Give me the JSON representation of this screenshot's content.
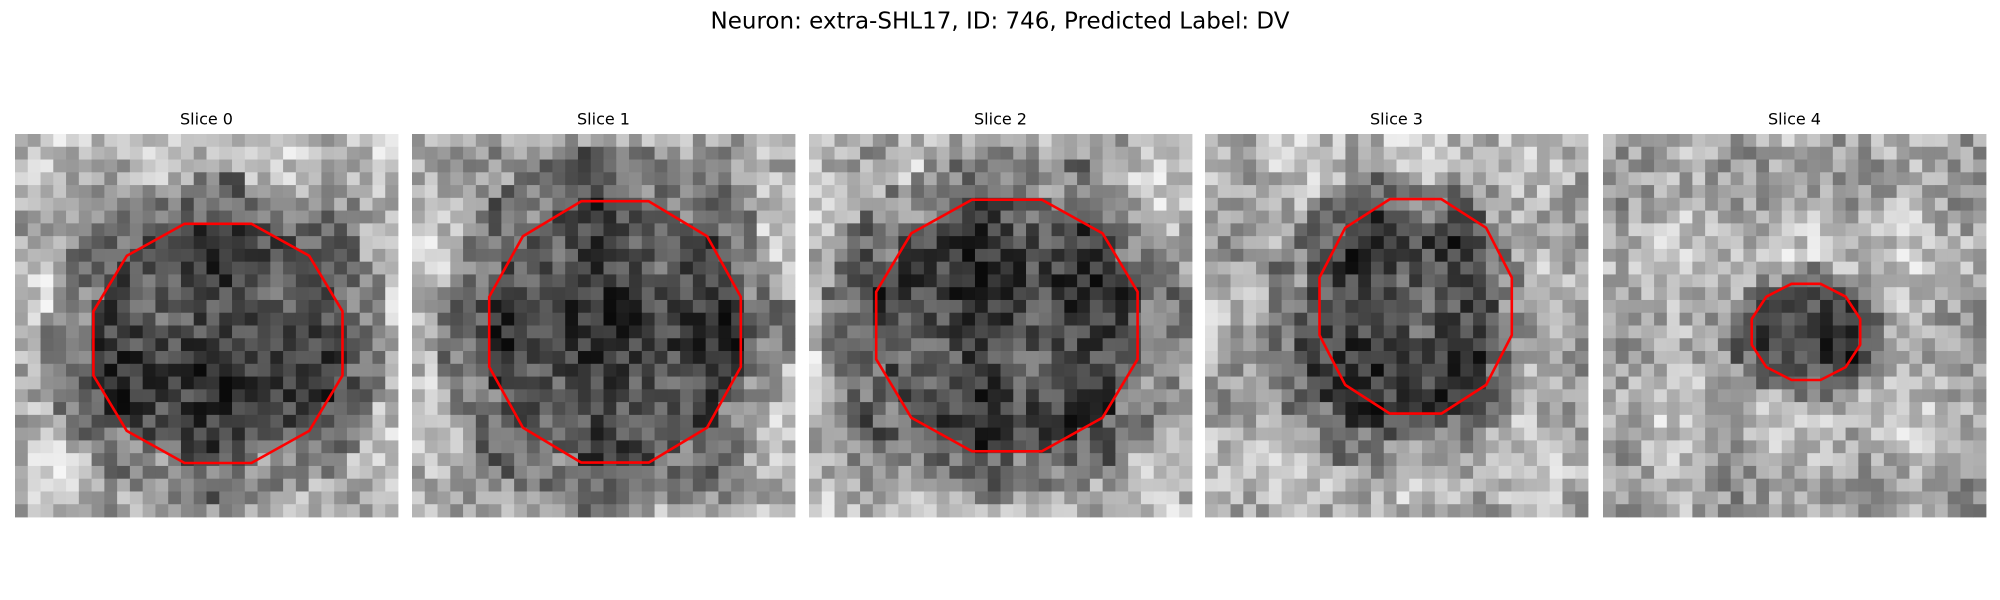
{
  "figure": {
    "title": "Neuron: extra-SHL17, ID: 746, Predicted Label: DV",
    "panels": [
      {
        "title": "Slice 0"
      },
      {
        "title": "Slice 1"
      },
      {
        "title": "Slice 2"
      },
      {
        "title": "Slice 3"
      },
      {
        "title": "Slice 4"
      }
    ]
  }
}
